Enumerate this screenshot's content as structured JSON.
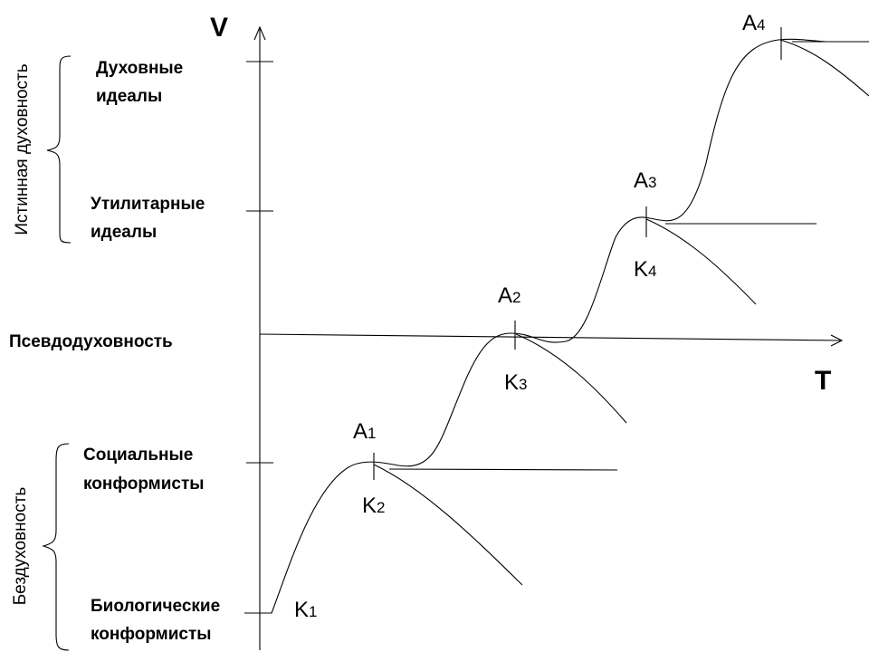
{
  "axes": {
    "y_label": "V",
    "x_label": "T",
    "baseline_label": "Псевдодуховность"
  },
  "groups": {
    "upper": "Истинная духовность",
    "lower": "Бездуховность"
  },
  "levels": {
    "spiritual_line1": "Духовные",
    "spiritual_line2": "идеалы",
    "utilitarian_line1": "Утилитарные",
    "utilitarian_line2": "идеалы",
    "social_line1": "Социальные",
    "social_line2": "конформисты",
    "biological_line1": "Биологические",
    "biological_line2": "конформисты"
  },
  "points": {
    "A1": {
      "letter": "A",
      "index": "1"
    },
    "A2": {
      "letter": "A",
      "index": "2"
    },
    "A3": {
      "letter": "A",
      "index": "3"
    },
    "A4": {
      "letter": "A",
      "index": "4"
    },
    "K1": {
      "letter": "K",
      "index": "1"
    },
    "K2": {
      "letter": "K",
      "index": "2"
    },
    "K3": {
      "letter": "K",
      "index": "3"
    },
    "K4": {
      "letter": "K",
      "index": "4"
    }
  },
  "colors": {
    "ink": "#000000",
    "background": "#ffffff"
  }
}
